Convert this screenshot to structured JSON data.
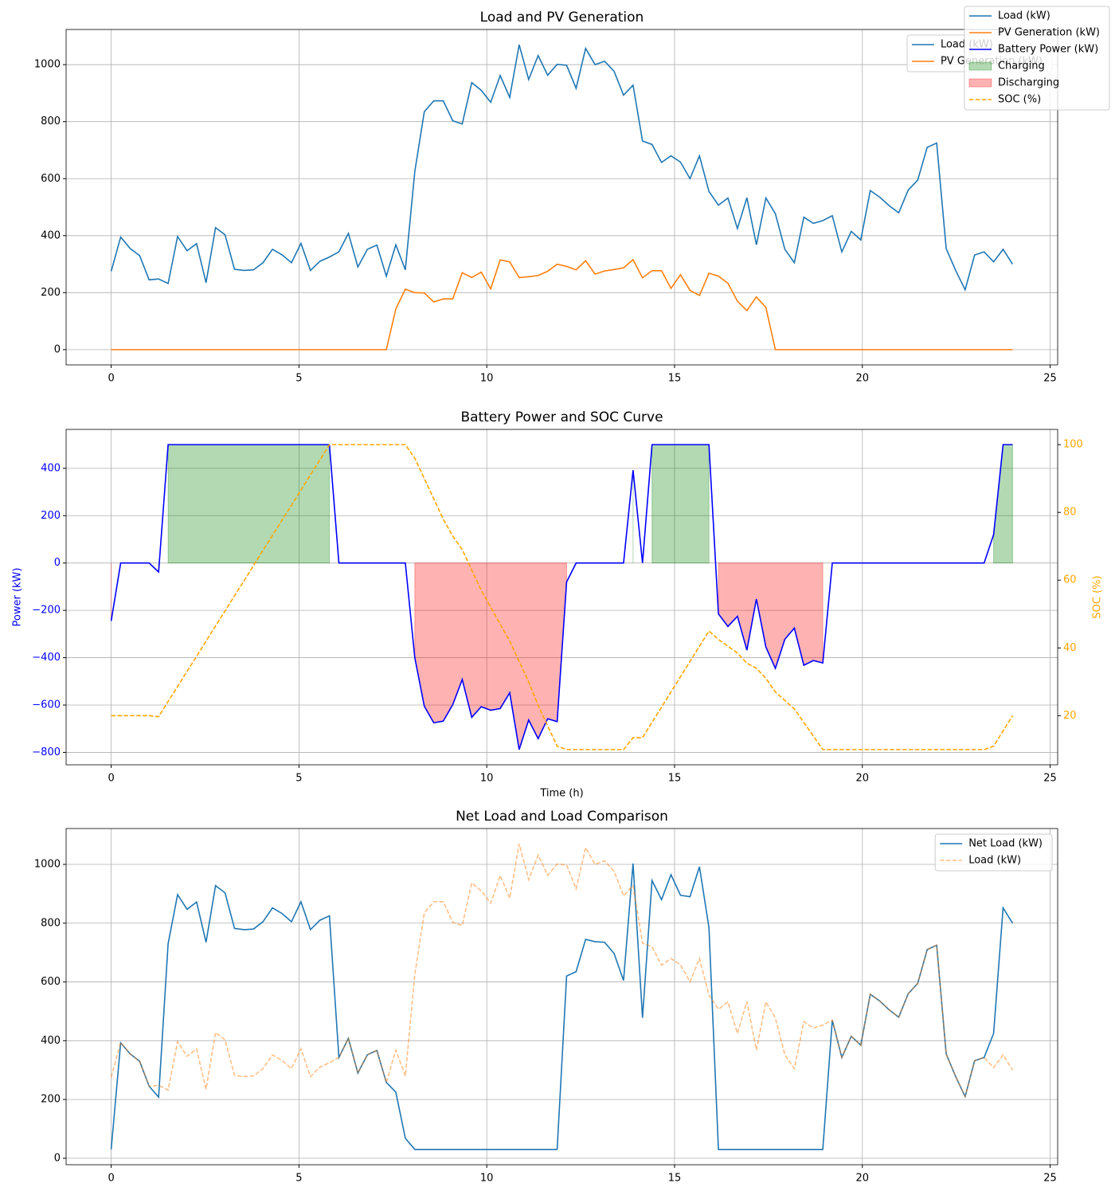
{
  "figure_legend": "upper right",
  "chart_data": [
    {
      "type": "line",
      "title": "Load and PV Generation",
      "x": [
        0,
        0.253,
        0.505,
        0.758,
        1.011,
        1.263,
        1.516,
        1.768,
        2.021,
        2.274,
        2.526,
        2.779,
        3.032,
        3.284,
        3.537,
        3.789,
        4.042,
        4.295,
        4.547,
        4.8,
        5.053,
        5.305,
        5.558,
        5.811,
        6.063,
        6.316,
        6.568,
        6.821,
        7.074,
        7.326,
        7.579,
        7.832,
        8.084,
        8.337,
        8.589,
        8.842,
        9.095,
        9.347,
        9.6,
        9.853,
        10.105,
        10.358,
        10.611,
        10.863,
        11.116,
        11.368,
        11.621,
        11.874,
        12.126,
        12.379,
        12.632,
        12.884,
        13.137,
        13.389,
        13.642,
        13.895,
        14.147,
        14.4,
        14.653,
        14.905,
        15.158,
        15.411,
        15.663,
        15.916,
        16.168,
        16.421,
        16.674,
        16.926,
        17.179,
        17.432,
        17.684,
        17.937,
        18.189,
        18.442,
        18.695,
        18.947,
        19.2,
        19.453,
        19.705,
        19.958,
        20.211,
        20.463,
        20.716,
        20.968,
        21.221,
        21.474,
        21.726,
        21.979,
        22.232,
        22.484,
        22.737,
        22.989,
        23.242,
        23.495,
        23.747,
        24
      ],
      "series": [
        {
          "name": "Load (kW)",
          "color": "#1f77b4",
          "values": [
            275,
            395,
            355,
            330,
            245,
            248,
            232,
            397,
            347,
            372,
            235,
            428,
            403,
            282,
            278,
            280,
            305,
            352,
            333,
            305,
            373,
            278,
            310,
            325,
            343,
            408,
            290,
            352,
            367,
            258,
            368,
            280,
            625,
            835,
            873,
            873,
            803,
            792,
            937,
            910,
            868,
            962,
            885,
            1070,
            948,
            1032,
            963,
            1001,
            998,
            917,
            1057,
            1000,
            1012,
            977,
            893,
            928,
            732,
            720,
            657,
            680,
            658,
            600,
            680,
            555,
            507,
            532,
            425,
            533,
            368,
            532,
            477,
            352,
            305,
            465,
            443,
            453,
            470,
            343,
            415,
            385,
            558,
            535,
            505,
            480,
            560,
            595,
            710,
            725,
            355,
            278,
            210,
            332,
            343,
            308,
            352,
            300
          ]
        },
        {
          "name": "PV Generation (kW)",
          "color": "#ff7f0e",
          "values": [
            0,
            0,
            0,
            0,
            0,
            0,
            0,
            0,
            0,
            0,
            0,
            0,
            0,
            0,
            0,
            0,
            0,
            0,
            0,
            0,
            0,
            0,
            0,
            0,
            0,
            0,
            0,
            0,
            0,
            0,
            143,
            212,
            200,
            199,
            167,
            178,
            178,
            270,
            253,
            272,
            213,
            315,
            308,
            253,
            256,
            260,
            275,
            300,
            292,
            280,
            312,
            265,
            276,
            281,
            287,
            316,
            252,
            277,
            277,
            215,
            263,
            208,
            190,
            268,
            258,
            233,
            170,
            137,
            185,
            148,
            0,
            0,
            0,
            0,
            0,
            0,
            0,
            0,
            0,
            0,
            0,
            0,
            0,
            0,
            0,
            0,
            0,
            0,
            0,
            0,
            0,
            0,
            0,
            0,
            0,
            0
          ]
        }
      ],
      "xlim": [
        -1.2,
        25.2
      ],
      "xticks": [
        0,
        5,
        10,
        15,
        20,
        25
      ],
      "ylim": [
        -53.5,
        1123.5
      ],
      "yticks": [
        0,
        200,
        400,
        600,
        800,
        1000
      ],
      "grid": true,
      "legend": "upper right",
      "in_figure_legend": true
    },
    {
      "type": "line",
      "title": "Battery Power and SOC Curve",
      "xlabel": "Time (h)",
      "ylabel": "Power (kW)",
      "y2label": "SOC (%)",
      "ycolor": "blue",
      "y2color": "orange",
      "x": [
        0,
        0.253,
        0.505,
        0.758,
        1.011,
        1.263,
        1.516,
        1.768,
        2.021,
        2.274,
        2.526,
        2.779,
        3.032,
        3.284,
        3.537,
        3.789,
        4.042,
        4.295,
        4.547,
        4.8,
        5.053,
        5.305,
        5.558,
        5.811,
        6.063,
        6.316,
        6.568,
        6.821,
        7.074,
        7.326,
        7.579,
        7.832,
        8.084,
        8.337,
        8.589,
        8.842,
        9.095,
        9.347,
        9.6,
        9.853,
        10.105,
        10.358,
        10.611,
        10.863,
        11.116,
        11.368,
        11.621,
        11.874,
        12.126,
        12.379,
        12.632,
        12.884,
        13.137,
        13.389,
        13.642,
        13.895,
        14.147,
        14.4,
        14.653,
        14.905,
        15.158,
        15.411,
        15.663,
        15.916,
        16.168,
        16.421,
        16.674,
        16.926,
        17.179,
        17.432,
        17.684,
        17.937,
        18.189,
        18.442,
        18.695,
        18.947,
        19.2,
        19.453,
        19.705,
        19.958,
        20.211,
        20.463,
        20.716,
        20.968,
        21.221,
        21.474,
        21.726,
        21.979,
        22.232,
        22.484,
        22.737,
        22.989,
        23.242,
        23.495,
        23.747,
        24
      ],
      "series": [
        {
          "name": "Battery Power (kW)",
          "color": "blue",
          "values": [
            -245,
            0,
            0,
            0,
            0,
            -38,
            500,
            500,
            500,
            500,
            500,
            500,
            500,
            500,
            500,
            500,
            500,
            500,
            500,
            500,
            500,
            500,
            500,
            500,
            0,
            0,
            0,
            0,
            0,
            0,
            0,
            0,
            -400,
            -605,
            -675,
            -668,
            -598,
            -492,
            -652,
            -607,
            -622,
            -615,
            -548,
            -788,
            -663,
            -742,
            -658,
            -670,
            -80,
            0,
            0,
            0,
            0,
            0,
            0,
            392,
            0,
            500,
            500,
            500,
            500,
            500,
            500,
            500,
            -215,
            -268,
            -225,
            -368,
            -152,
            -355,
            -445,
            -322,
            -275,
            -432,
            -412,
            -422,
            0,
            0,
            0,
            0,
            0,
            0,
            0,
            0,
            0,
            0,
            0,
            0,
            0,
            0,
            0,
            0,
            0,
            120,
            500,
            500
          ]
        },
        {
          "name": "SOC (%)",
          "color": "orange",
          "dash": true,
          "axis": "y2",
          "values": [
            20,
            20,
            20,
            20,
            20,
            19.7,
            24.2,
            28.6,
            33.1,
            37.5,
            42,
            46.5,
            50.9,
            55.4,
            59.8,
            64.3,
            68.8,
            73.2,
            77.7,
            82.1,
            86.6,
            91.1,
            95.5,
            100,
            100,
            100,
            100,
            100,
            100,
            100,
            100,
            100,
            96,
            90,
            84,
            78,
            73,
            69,
            63,
            57,
            52,
            47,
            42,
            36,
            30,
            23,
            17,
            11,
            10,
            10,
            10,
            10,
            10,
            10,
            10,
            13.5,
            13.5,
            18,
            22.5,
            27,
            31.5,
            36,
            40.5,
            45,
            42.5,
            40.5,
            38.5,
            35.5,
            34,
            31,
            27,
            24.5,
            22,
            18,
            14,
            10,
            10,
            10,
            10,
            10,
            10,
            10,
            10,
            10,
            10,
            10,
            10,
            10,
            10,
            10,
            10,
            10,
            10,
            11,
            15.5,
            20
          ]
        }
      ],
      "fills": [
        {
          "name": "Charging",
          "color": "green",
          "alpha": 0.3,
          "where": "positive"
        },
        {
          "name": "Discharging",
          "color": "red",
          "alpha": 0.3,
          "where": "negative"
        }
      ],
      "xlim": [
        -1.2,
        25.2
      ],
      "xticks": [
        0,
        5,
        10,
        15,
        20,
        25
      ],
      "ylim": [
        -852.4,
        564.4
      ],
      "yticks": [
        {
          "value": -800,
          "label": "−800"
        },
        {
          "value": -600,
          "label": "−600"
        },
        {
          "value": -400,
          "label": "−400"
        },
        {
          "value": -200,
          "label": "−200"
        },
        0,
        200,
        400
      ],
      "y2lim": [
        5.5,
        104.5
      ],
      "y2ticks": [
        20,
        40,
        60,
        80,
        100
      ],
      "grid": true,
      "in_figure_legend": true
    },
    {
      "type": "line",
      "title": "Net Load and Load Comparison",
      "x": [
        0,
        0.253,
        0.505,
        0.758,
        1.011,
        1.263,
        1.516,
        1.768,
        2.021,
        2.274,
        2.526,
        2.779,
        3.032,
        3.284,
        3.537,
        3.789,
        4.042,
        4.295,
        4.547,
        4.8,
        5.053,
        5.305,
        5.558,
        5.811,
        6.063,
        6.316,
        6.568,
        6.821,
        7.074,
        7.326,
        7.579,
        7.832,
        8.084,
        8.337,
        8.589,
        8.842,
        9.095,
        9.347,
        9.6,
        9.853,
        10.105,
        10.358,
        10.611,
        10.863,
        11.116,
        11.368,
        11.621,
        11.874,
        12.126,
        12.379,
        12.632,
        12.884,
        13.137,
        13.389,
        13.642,
        13.895,
        14.147,
        14.4,
        14.653,
        14.905,
        15.158,
        15.411,
        15.663,
        15.916,
        16.168,
        16.421,
        16.674,
        16.926,
        17.179,
        17.432,
        17.684,
        17.937,
        18.189,
        18.442,
        18.695,
        18.947,
        19.2,
        19.453,
        19.705,
        19.958,
        20.211,
        20.463,
        20.716,
        20.968,
        21.221,
        21.474,
        21.726,
        21.979,
        22.232,
        22.484,
        22.737,
        22.989,
        23.242,
        23.495,
        23.747,
        24
      ],
      "series": [
        {
          "name": "Net Load (kW)",
          "color": "#1f77b4",
          "values": [
            30,
            393,
            355,
            330,
            245,
            208,
            730,
            897,
            847,
            872,
            735,
            928,
            903,
            782,
            778,
            780,
            805,
            852,
            833,
            805,
            873,
            778,
            810,
            825,
            343,
            408,
            290,
            352,
            367,
            258,
            225,
            68,
            30,
            30,
            30,
            30,
            30,
            30,
            30,
            30,
            30,
            30,
            30,
            30,
            30,
            30,
            30,
            30,
            620,
            635,
            745,
            737,
            735,
            697,
            605,
            1003,
            478,
            945,
            880,
            965,
            895,
            890,
            992,
            785,
            30,
            30,
            30,
            30,
            30,
            30,
            30,
            30,
            30,
            30,
            30,
            30,
            470,
            343,
            415,
            385,
            558,
            535,
            505,
            480,
            560,
            595,
            710,
            725,
            355,
            278,
            210,
            332,
            343,
            425,
            852,
            800
          ]
        },
        {
          "name": "Load (kW)",
          "color": "#ff7f0e",
          "dash": true,
          "alpha": 0.5,
          "values": [
            275,
            395,
            355,
            330,
            245,
            248,
            232,
            397,
            347,
            372,
            235,
            428,
            403,
            282,
            278,
            280,
            305,
            352,
            333,
            305,
            373,
            278,
            310,
            325,
            343,
            408,
            290,
            352,
            367,
            258,
            368,
            280,
            625,
            835,
            873,
            873,
            803,
            792,
            937,
            910,
            868,
            962,
            885,
            1070,
            948,
            1032,
            963,
            1001,
            998,
            917,
            1057,
            1000,
            1012,
            977,
            893,
            928,
            732,
            720,
            657,
            680,
            658,
            600,
            680,
            555,
            507,
            532,
            425,
            533,
            368,
            532,
            477,
            352,
            305,
            465,
            443,
            453,
            470,
            343,
            415,
            385,
            558,
            535,
            505,
            480,
            560,
            595,
            710,
            725,
            355,
            278,
            210,
            332,
            343,
            308,
            352,
            300
          ]
        }
      ],
      "xlim": [
        -1.2,
        25.2
      ],
      "xticks": [
        0,
        5,
        10,
        15,
        20,
        25
      ],
      "ylim": [
        -22,
        1122
      ],
      "yticks": [
        0,
        200,
        400,
        600,
        800,
        1000
      ],
      "grid": true,
      "legend": "upper right"
    }
  ]
}
